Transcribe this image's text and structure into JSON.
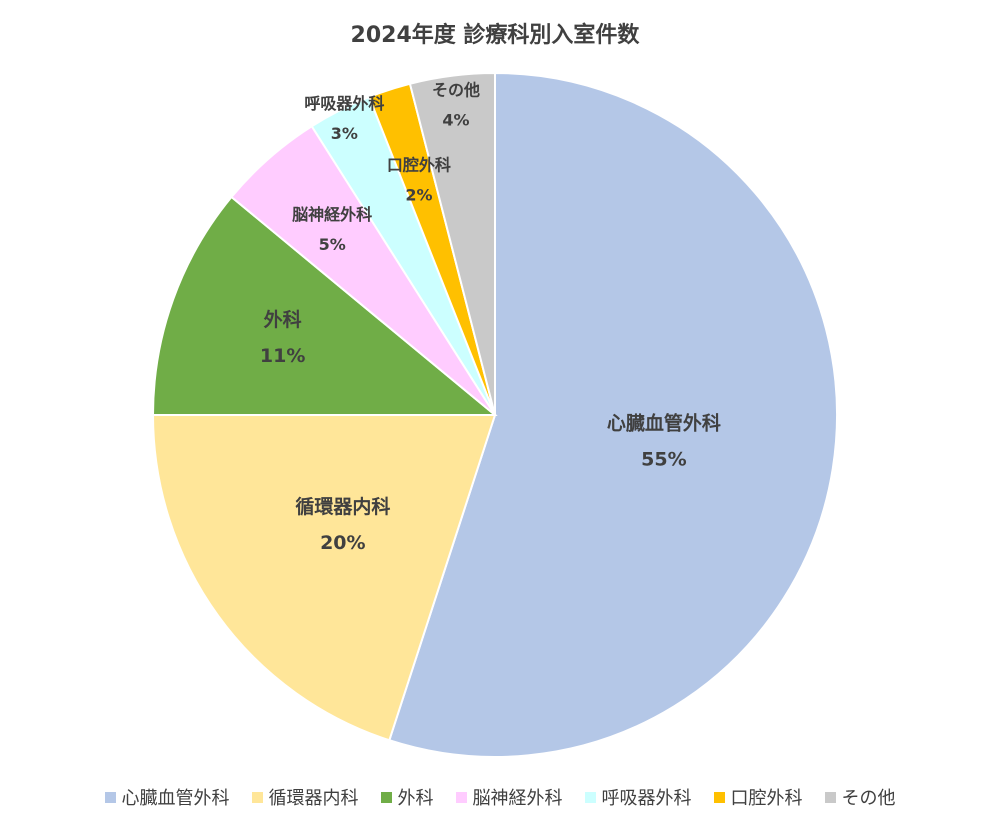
{
  "chart_data": {
    "type": "pie",
    "title": "2024年度 診療科別入室件数",
    "categories": [
      "心臓血管外科",
      "循環器内科",
      "外科",
      "脳神経外科",
      "呼吸器外科",
      "口腔外科",
      "その他"
    ],
    "values": [
      55,
      20,
      11,
      5,
      3,
      2,
      4
    ],
    "value_labels": [
      "55%",
      "20%",
      "11%",
      "5%",
      "3%",
      "2%",
      "4%"
    ],
    "colors": [
      "#b4c7e7",
      "#ffe699",
      "#70ad47",
      "#ffccff",
      "#ccffff",
      "#ffc000",
      "#c9c9c9"
    ],
    "legend": "bottom"
  }
}
